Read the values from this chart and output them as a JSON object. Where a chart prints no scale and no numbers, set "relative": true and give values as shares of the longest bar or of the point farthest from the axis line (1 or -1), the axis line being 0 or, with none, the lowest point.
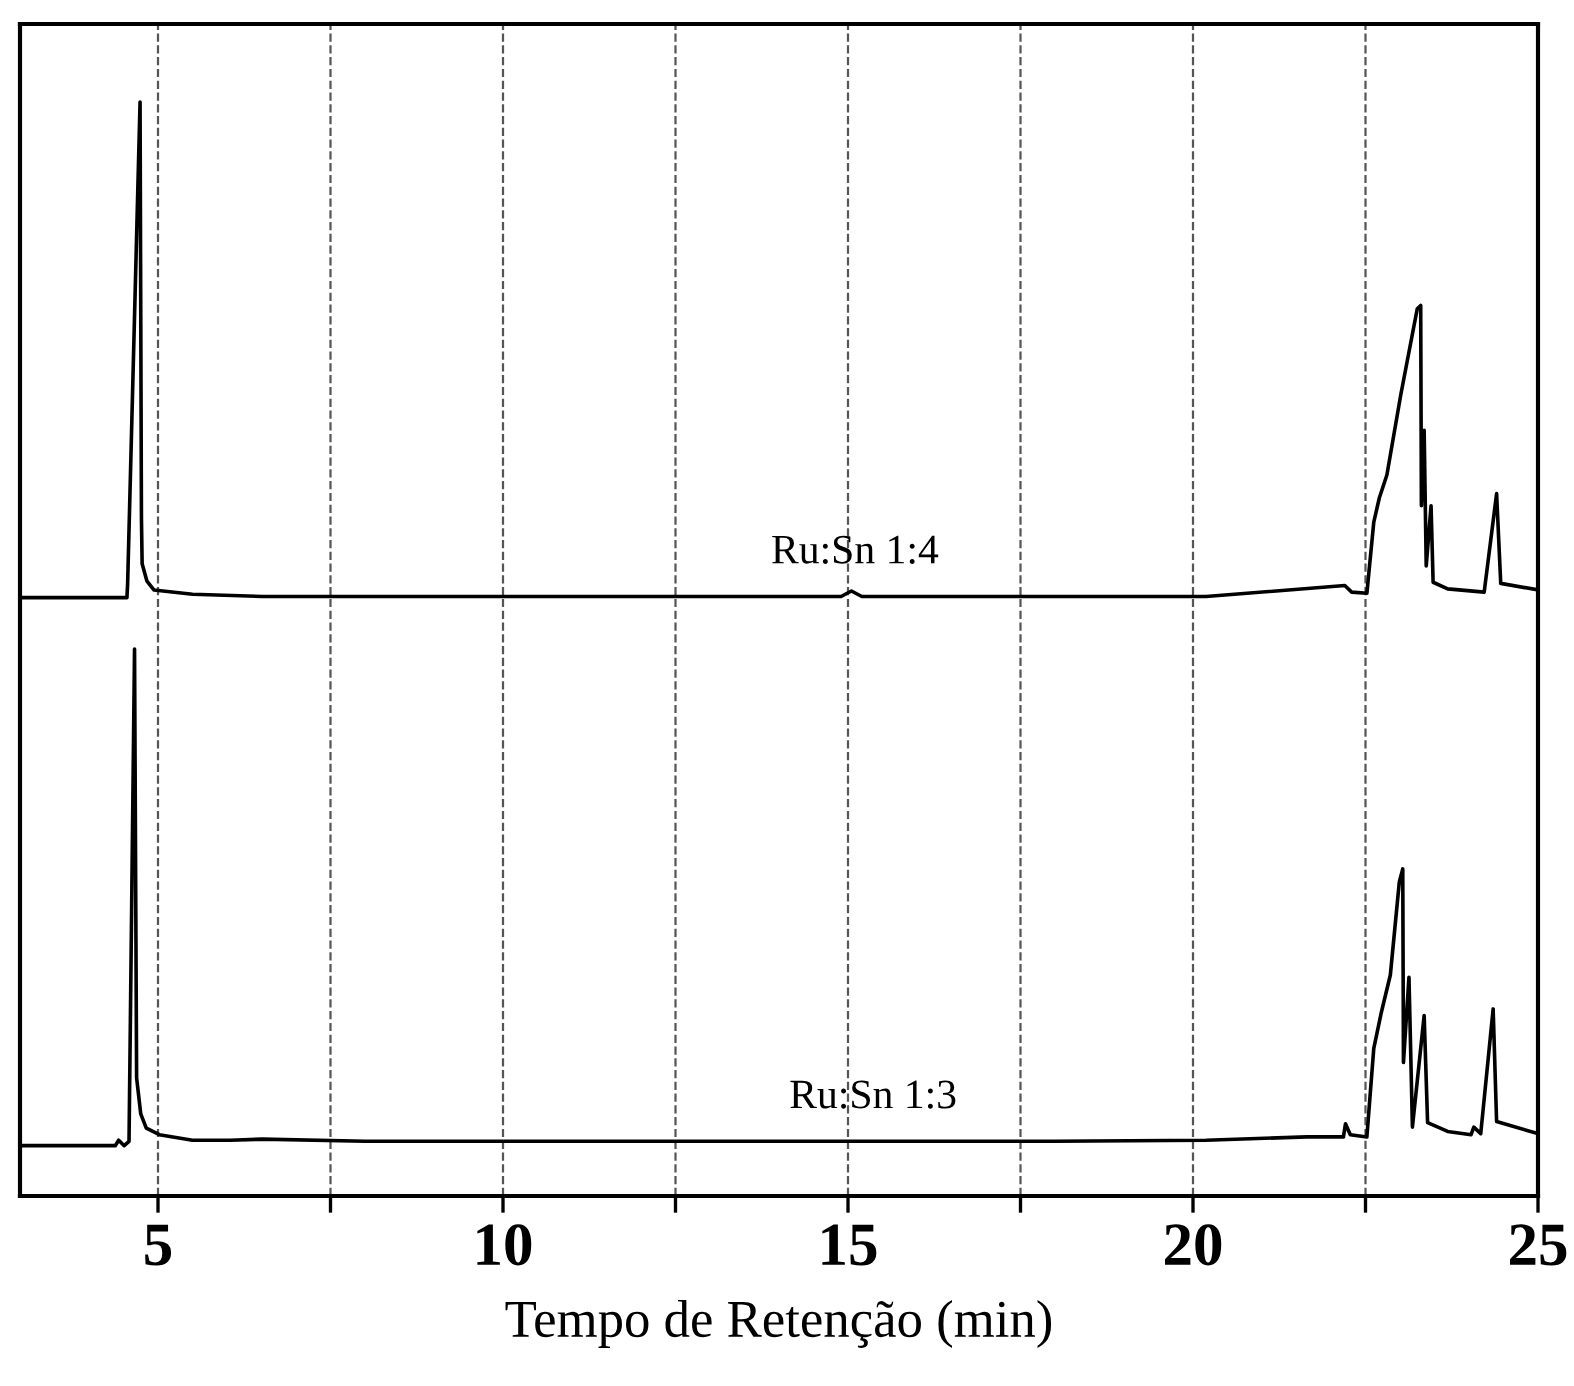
{
  "chart_data": {
    "type": "line",
    "relative": true,
    "xlabel": "Tempo de Retenção (min)",
    "xlim": [
      3,
      25
    ],
    "xticks": [
      5,
      {
        "value": 7.5,
        "label": null
      },
      10,
      {
        "value": 12.5,
        "label": null
      },
      15,
      {
        "value": 17.5,
        "label": null
      },
      20,
      {
        "value": 22.5,
        "label": null
      },
      25
    ],
    "grid": "x",
    "legend": false,
    "marker": "none",
    "line_style": "solid",
    "series": [
      {
        "name": "Ru:Sn 1:4",
        "color": "#000000",
        "x": [
          3.0,
          4.0,
          4.55,
          4.56,
          4.74,
          4.76,
          4.77,
          4.84,
          4.94,
          5.5,
          6.51,
          8.0,
          10.0,
          12.0,
          14.9,
          15.05,
          15.2,
          17.0,
          19.0,
          20.19,
          22.2,
          22.3,
          22.52,
          22.62,
          22.7,
          22.81,
          23.01,
          23.25,
          23.3,
          23.31,
          23.35,
          23.38,
          23.45,
          23.48,
          23.69,
          24.22,
          24.4,
          24.46,
          25.0
        ],
        "values": [
          0.547,
          0.547,
          0.547,
          0.56,
          1.0,
          0.62,
          0.578,
          0.562,
          0.554,
          0.55,
          0.548,
          0.548,
          0.548,
          0.548,
          0.548,
          0.553,
          0.548,
          0.548,
          0.548,
          0.548,
          0.558,
          0.552,
          0.551,
          0.616,
          0.638,
          0.659,
          0.732,
          0.811,
          0.814,
          0.631,
          0.7,
          0.576,
          0.631,
          0.561,
          0.555,
          0.552,
          0.642,
          0.56,
          0.554
        ]
      },
      {
        "name": "Ru:Sn 1:3",
        "color": "#000000",
        "x": [
          3.0,
          4.0,
          4.38,
          4.43,
          4.51,
          4.58,
          4.66,
          4.69,
          4.75,
          4.83,
          5.02,
          5.5,
          6.05,
          6.51,
          8.0,
          10.0,
          12.0,
          15.0,
          18.0,
          20.19,
          21.65,
          22.18,
          22.21,
          22.28,
          22.52,
          22.62,
          22.73,
          22.86,
          22.99,
          23.04,
          23.05,
          23.13,
          23.18,
          23.35,
          23.4,
          23.69,
          24.03,
          24.07,
          24.17,
          24.35,
          24.4,
          25.0
        ],
        "values": [
          0.046,
          0.046,
          0.046,
          0.051,
          0.046,
          0.05,
          0.5,
          0.108,
          0.075,
          0.062,
          0.056,
          0.051,
          0.051,
          0.052,
          0.05,
          0.05,
          0.05,
          0.05,
          0.05,
          0.051,
          0.054,
          0.054,
          0.066,
          0.056,
          0.054,
          0.135,
          0.168,
          0.202,
          0.287,
          0.299,
          0.122,
          0.2,
          0.063,
          0.165,
          0.067,
          0.059,
          0.056,
          0.063,
          0.057,
          0.171,
          0.068,
          0.057
        ]
      }
    ]
  }
}
